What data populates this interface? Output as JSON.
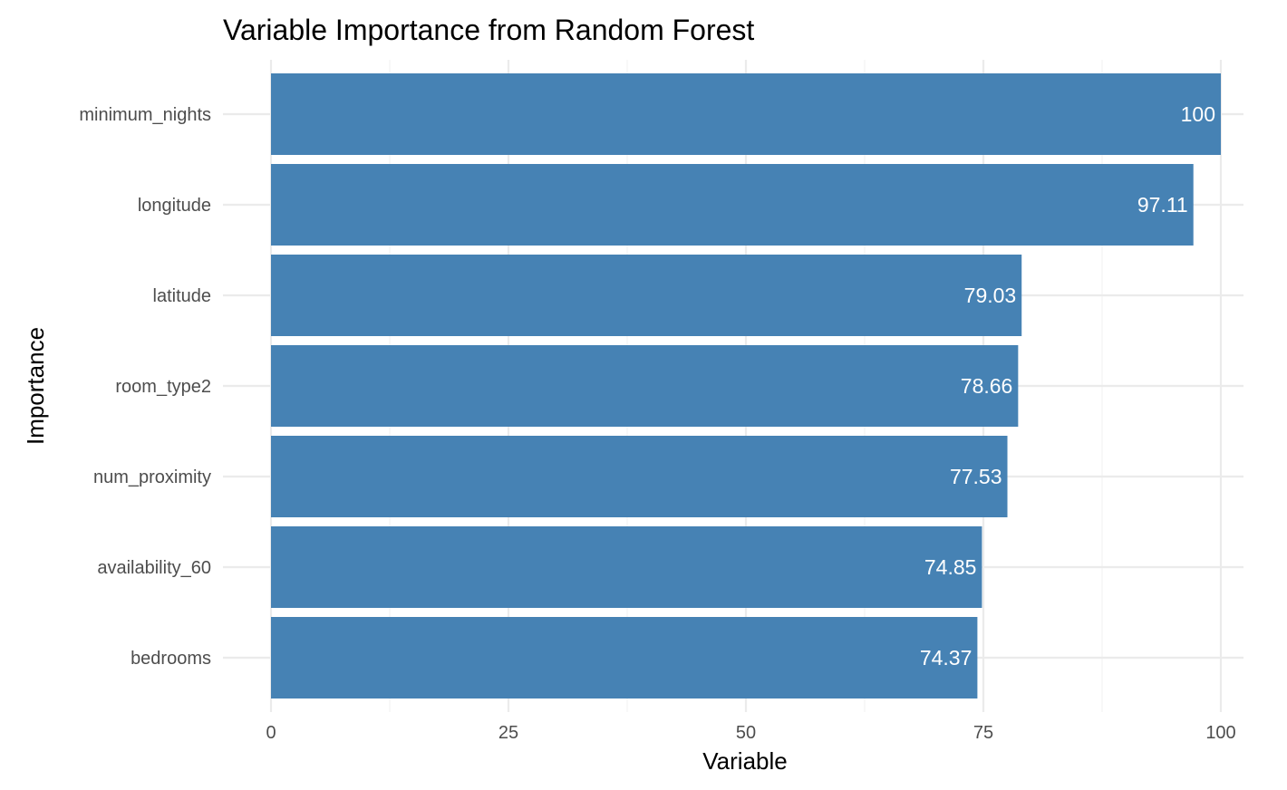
{
  "chart_data": {
    "type": "bar",
    "orientation": "horizontal",
    "title": "Variable Importance from Random Forest",
    "xlabel": "Variable",
    "ylabel": "Importance",
    "categories": [
      "minimum_nights",
      "longitude",
      "latitude",
      "room_type2",
      "num_proximity",
      "availability_60",
      "bedrooms"
    ],
    "values": [
      100,
      97.11,
      79.03,
      78.66,
      77.53,
      74.85,
      74.37
    ],
    "data_labels": [
      "100",
      "97.11",
      "79.03",
      "78.66",
      "77.53",
      "74.85",
      "74.37"
    ],
    "xlim": [
      0,
      100
    ],
    "x_ticks": [
      0,
      25,
      50,
      75,
      100
    ],
    "x_tick_labels": [
      "0",
      "25",
      "50",
      "75",
      "100"
    ],
    "x_minor_ticks": [
      12.5,
      37.5,
      62.5,
      87.5
    ],
    "grid": true,
    "legend": "none",
    "bar_color": "#4682b4",
    "label_color": "#ffffff"
  }
}
